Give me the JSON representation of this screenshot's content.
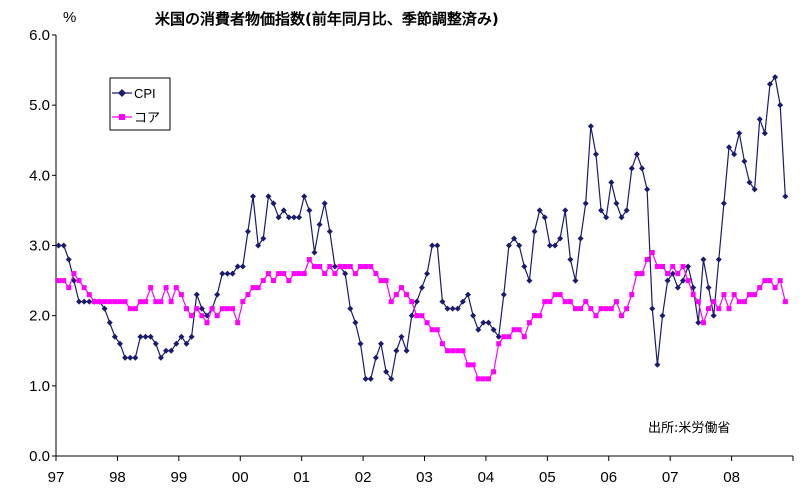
{
  "chart_data": {
    "type": "line",
    "title": "米国の消費者物価指数(前年同月比、季節調整済み)",
    "unit_label": "%",
    "source_note": "出所:米労働省",
    "ylim": [
      0.0,
      6.0
    ],
    "yticks": [
      "0.0",
      "1.0",
      "2.0",
      "3.0",
      "4.0",
      "5.0",
      "6.0"
    ],
    "xlim": [
      1997,
      2009
    ],
    "xticks": [
      "97",
      "98",
      "99",
      "00",
      "01",
      "02",
      "03",
      "04",
      "05",
      "06",
      "07",
      "08"
    ],
    "grid": false,
    "legend_position": "top-left",
    "colors": {
      "CPI": "#1a1a6e",
      "core": "#ff00ff"
    },
    "series": [
      {
        "name": "CPI",
        "start": "1997-01",
        "values": [
          3.0,
          3.0,
          2.8,
          2.5,
          2.2,
          2.2,
          2.2,
          2.2,
          2.2,
          2.1,
          1.9,
          1.7,
          1.6,
          1.4,
          1.4,
          1.4,
          1.7,
          1.7,
          1.7,
          1.6,
          1.4,
          1.5,
          1.5,
          1.6,
          1.7,
          1.6,
          1.7,
          2.3,
          2.1,
          2.0,
          2.1,
          2.3,
          2.6,
          2.6,
          2.6,
          2.7,
          2.7,
          3.2,
          3.7,
          3.0,
          3.1,
          3.7,
          3.6,
          3.4,
          3.5,
          3.4,
          3.4,
          3.4,
          3.7,
          3.5,
          2.9,
          3.3,
          3.6,
          3.2,
          2.7,
          2.7,
          2.6,
          2.1,
          1.9,
          1.6,
          1.1,
          1.1,
          1.4,
          1.6,
          1.2,
          1.1,
          1.5,
          1.7,
          1.5,
          2.0,
          2.2,
          2.4,
          2.6,
          3.0,
          3.0,
          2.2,
          2.1,
          2.1,
          2.1,
          2.2,
          2.3,
          2.0,
          1.8,
          1.9,
          1.9,
          1.8,
          1.7,
          2.3,
          3.0,
          3.1,
          3.0,
          2.7,
          2.5,
          3.2,
          3.5,
          3.4,
          3.0,
          3.0,
          3.1,
          3.5,
          2.8,
          2.5,
          3.1,
          3.6,
          4.7,
          4.3,
          3.5,
          3.4,
          3.9,
          3.6,
          3.4,
          3.5,
          4.1,
          4.3,
          4.1,
          3.8,
          2.1,
          1.3,
          2.0,
          2.5,
          2.6,
          2.4,
          2.5,
          2.7,
          2.4,
          1.9,
          2.8,
          2.4,
          2.0,
          2.8,
          3.6,
          4.4,
          4.3,
          4.6,
          4.2,
          3.9,
          3.8,
          4.8,
          4.6,
          5.3,
          5.4,
          5.0,
          3.7
        ]
      },
      {
        "name": "コア",
        "start": "1997-01",
        "values": [
          2.5,
          2.5,
          2.4,
          2.6,
          2.5,
          2.4,
          2.3,
          2.2,
          2.2,
          2.2,
          2.2,
          2.2,
          2.2,
          2.2,
          2.1,
          2.1,
          2.2,
          2.2,
          2.4,
          2.2,
          2.2,
          2.4,
          2.2,
          2.4,
          2.3,
          2.1,
          2.0,
          2.1,
          2.0,
          1.9,
          2.1,
          2.0,
          2.1,
          2.1,
          2.1,
          1.9,
          2.2,
          2.3,
          2.4,
          2.4,
          2.5,
          2.6,
          2.5,
          2.6,
          2.6,
          2.5,
          2.6,
          2.6,
          2.6,
          2.8,
          2.7,
          2.7,
          2.6,
          2.7,
          2.6,
          2.7,
          2.7,
          2.7,
          2.6,
          2.7,
          2.7,
          2.7,
          2.6,
          2.5,
          2.5,
          2.2,
          2.3,
          2.4,
          2.3,
          2.2,
          2.0,
          2.0,
          1.9,
          1.8,
          1.8,
          1.6,
          1.5,
          1.5,
          1.5,
          1.5,
          1.3,
          1.3,
          1.1,
          1.1,
          1.1,
          1.2,
          1.6,
          1.7,
          1.7,
          1.8,
          1.8,
          1.7,
          1.9,
          2.0,
          2.0,
          2.2,
          2.2,
          2.3,
          2.3,
          2.2,
          2.2,
          2.1,
          2.1,
          2.2,
          2.1,
          2.0,
          2.1,
          2.1,
          2.1,
          2.2,
          2.0,
          2.1,
          2.3,
          2.6,
          2.6,
          2.8,
          2.9,
          2.7,
          2.7,
          2.6,
          2.7,
          2.6,
          2.7,
          2.5,
          2.3,
          2.2,
          1.9,
          2.1,
          2.2,
          2.1,
          2.3,
          2.1,
          2.3,
          2.2,
          2.2,
          2.3,
          2.3,
          2.4,
          2.5,
          2.5,
          2.4,
          2.5,
          2.2
        ]
      }
    ]
  }
}
